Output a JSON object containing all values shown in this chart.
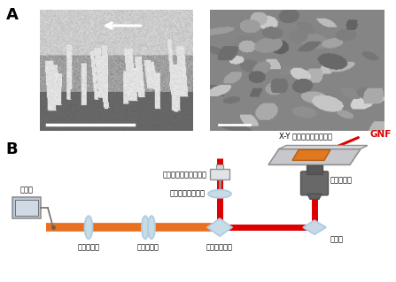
{
  "label_A": "A",
  "label_B": "B",
  "bg_color": "#ffffff",
  "fig_width": 4.47,
  "fig_height": 3.19,
  "dpi": 100,
  "japanese_labels": {
    "spectrometer": "分光器",
    "semiconductor_laser": "半導体レーザー発振器",
    "collimator_lens": "コリメートレンズ",
    "condenser_lens": "集光レンズ",
    "filter": "フィルター",
    "splitter": "スプリッター",
    "objective_lens": "対物レンズ",
    "mirror": "反射鏡",
    "xy_stage": "X-Y スキャン用ステージ",
    "gnf": "GNF"
  },
  "colors": {
    "red": "#dd0000",
    "orange": "#e87020",
    "light_blue": "#b0cce0",
    "gray": "#888888",
    "dark_gray": "#505050",
    "stage_gray": "#c8c8cc",
    "gnf_orange": "#e07820",
    "obj_dark": "#606060",
    "mirror_fill": "#c8d8e8",
    "lens_fill": "#c8dce8",
    "spec_fill": "#b8c8d8"
  }
}
